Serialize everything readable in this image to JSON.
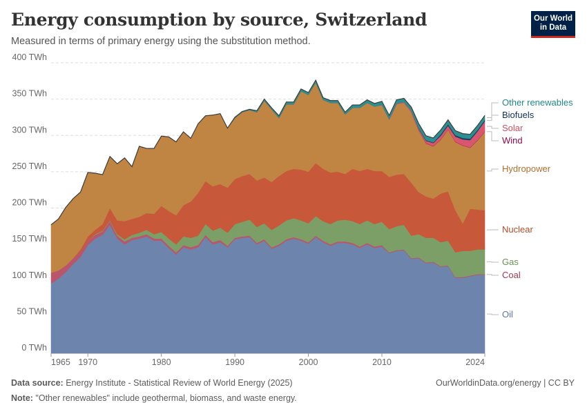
{
  "header": {
    "title": "Energy consumption by source, Switzerland",
    "subtitle": "Measured in terms of primary energy using the substitution method.",
    "logo_line1": "Our World",
    "logo_line2": "in Data"
  },
  "footer": {
    "source_label": "Data source:",
    "source_text": " Energy Institute - Statistical Review of World Energy (2025)",
    "note_label": "Note:",
    "note_text": " \"Other renewables\" include geothermal, biomass, and waste energy.",
    "credit": "OurWorldinData.org/energy | CC BY"
  },
  "colors": {
    "Oil": "#6d84ad",
    "Coal": "#b9566b",
    "Gas": "#7b9f66",
    "Nuclear": "#c8583a",
    "Hydropower": "#c08543",
    "Wind": "#a01a5a",
    "Solar": "#d8576d",
    "Biofuels": "#1f3d66",
    "Other renewables": "#2d9090"
  },
  "label_colors": {
    "Oil": "#5b75a6",
    "Coal": "#a8364e",
    "Gas": "#6a9155",
    "Nuclear": "#b84a27",
    "Hydropower": "#b06f2c",
    "Wind": "#8f0a4a",
    "Solar": "#d24e63",
    "Biofuels": "#10305a",
    "Other renewables": "#1f8888"
  },
  "chart_data": {
    "type": "area",
    "stacked": true,
    "title": "Energy consumption by source, Switzerland",
    "subtitle": "Measured in terms of primary energy using the substitution method.",
    "unit": "TWh",
    "ylim": [
      0,
      400
    ],
    "y_ticks": [
      0,
      50,
      100,
      150,
      200,
      250,
      300,
      350,
      400
    ],
    "y_tick_labels": [
      "0 TWh",
      "50 TWh",
      "100 TWh",
      "150 TWh",
      "200 TWh",
      "250 TWh",
      "300 TWh",
      "350 TWh",
      "400 TWh"
    ],
    "xlim": [
      1965,
      2024
    ],
    "x_ticks": [
      1965,
      1970,
      1980,
      1990,
      2000,
      2010,
      2024
    ],
    "grid": "horizontal-dashed",
    "legend": "right-inline",
    "x": [
      1965,
      1966,
      1967,
      1968,
      1969,
      1970,
      1971,
      1972,
      1973,
      1974,
      1975,
      1976,
      1977,
      1978,
      1979,
      1980,
      1981,
      1982,
      1983,
      1984,
      1985,
      1986,
      1987,
      1988,
      1989,
      1990,
      1991,
      1992,
      1993,
      1994,
      1995,
      1996,
      1997,
      1998,
      1999,
      2000,
      2001,
      2002,
      2003,
      2004,
      2005,
      2006,
      2007,
      2008,
      2009,
      2010,
      2011,
      2012,
      2013,
      2014,
      2015,
      2016,
      2017,
      2018,
      2019,
      2020,
      2021,
      2022,
      2023,
      2024
    ],
    "series": [
      {
        "name": "Oil",
        "values": [
          96,
          103,
          112,
          123,
          133,
          149,
          158,
          163,
          177,
          158,
          150,
          156,
          158,
          161,
          155,
          155,
          145,
          136,
          146,
          143,
          146,
          160,
          150,
          153,
          146,
          157,
          159,
          160,
          150,
          155,
          144,
          148,
          155,
          158,
          155,
          151,
          160,
          153,
          148,
          152,
          152,
          150,
          145,
          150,
          145,
          147,
          138,
          141,
          142,
          130,
          131,
          124,
          125,
          119,
          120,
          104,
          104,
          106,
          108,
          108
        ]
      },
      {
        "name": "Coal",
        "values": [
          15,
          11,
          9,
          8,
          7,
          6,
          5,
          5,
          5,
          4,
          4,
          3,
          3,
          3,
          3,
          3,
          3,
          3,
          3,
          3,
          3,
          3,
          3,
          3,
          2,
          2,
          2,
          2,
          2,
          2,
          2,
          2,
          2,
          2,
          2,
          2,
          2,
          2,
          2,
          2,
          2,
          2,
          2,
          2,
          2,
          2,
          1,
          1,
          1,
          1,
          1,
          1,
          1,
          1,
          1,
          1,
          1,
          1,
          1,
          1
        ]
      },
      {
        "name": "Gas",
        "values": [
          0,
          0,
          0,
          0,
          0,
          0,
          1,
          1,
          1,
          2,
          3,
          4,
          5,
          6,
          6,
          9,
          10,
          11,
          12,
          13,
          13,
          15,
          16,
          17,
          18,
          19,
          20,
          22,
          22,
          22,
          24,
          26,
          26,
          26,
          26,
          26,
          27,
          27,
          28,
          29,
          30,
          30,
          31,
          31,
          31,
          32,
          32,
          33,
          34,
          31,
          32,
          34,
          33,
          33,
          34,
          34,
          36,
          34,
          34,
          34
        ]
      },
      {
        "name": "Nuclear",
        "values": [
          0,
          0,
          0,
          0,
          3,
          6,
          6,
          9,
          17,
          19,
          25,
          22,
          22,
          23,
          28,
          36,
          38,
          40,
          43,
          50,
          59,
          59,
          61,
          60,
          62,
          62,
          63,
          63,
          64,
          63,
          66,
          68,
          68,
          68,
          70,
          71,
          73,
          72,
          71,
          67,
          63,
          72,
          73,
          71,
          73,
          70,
          72,
          71,
          70,
          73,
          58,
          57,
          54,
          67,
          68,
          58,
          38,
          58,
          55,
          54
        ]
      },
      {
        "name": "Hydropower",
        "values": [
          66,
          71,
          80,
          82,
          79,
          88,
          78,
          68,
          71,
          78,
          87,
          72,
          97,
          89,
          90,
          96,
          102,
          101,
          101,
          87,
          95,
          90,
          98,
          97,
          82,
          84,
          88,
          88,
          94,
          106,
          100,
          80,
          92,
          89,
          108,
          106,
          111,
          95,
          96,
          95,
          82,
          84,
          87,
          91,
          89,
          91,
          79,
          97,
          98,
          97,
          85,
          73,
          72,
          74,
          85,
          94,
          107,
          84,
          95,
          108
        ]
      },
      {
        "name": "Wind",
        "values": [
          0,
          0,
          0,
          0,
          0,
          0,
          0,
          0,
          0,
          0,
          0,
          0,
          0,
          0,
          0,
          0,
          0,
          0,
          0,
          0,
          0,
          0,
          0,
          0,
          0,
          0,
          0,
          0,
          0,
          0,
          0,
          0,
          0,
          0,
          0,
          0,
          0,
          0,
          0,
          0,
          0,
          0,
          0,
          0,
          0,
          0,
          0,
          0,
          0,
          0,
          0.5,
          0.5,
          0.5,
          0.5,
          0.5,
          0.5,
          0.5,
          0.5,
          0.5,
          0.5
        ]
      },
      {
        "name": "Solar",
        "values": [
          0,
          0,
          0,
          0,
          0,
          0,
          0,
          0,
          0,
          0,
          0,
          0,
          0,
          0,
          0,
          0,
          0,
          0,
          0,
          0,
          0,
          0,
          0,
          0,
          0,
          0,
          0,
          0,
          0,
          0,
          0,
          0,
          0,
          0,
          0,
          0,
          0,
          0,
          0,
          0,
          0,
          0,
          0,
          0,
          0,
          0,
          0.5,
          1,
          1,
          2,
          2,
          3,
          4,
          5,
          5,
          7,
          8,
          10,
          12,
          14
        ]
      },
      {
        "name": "Biofuels",
        "values": [
          0,
          0,
          0,
          0,
          0,
          0,
          0,
          0,
          0,
          0,
          0,
          0,
          0,
          0,
          0,
          0,
          0,
          0,
          0,
          0,
          0,
          0,
          0,
          0,
          0,
          0,
          0,
          0,
          0,
          0,
          0,
          0,
          0,
          0,
          0,
          0,
          0,
          0,
          0,
          0,
          0,
          0,
          0,
          0,
          0,
          0,
          0,
          0,
          0,
          0,
          1,
          1,
          1,
          2,
          2,
          2,
          2,
          2,
          2,
          2
        ]
      },
      {
        "name": "Other renewables",
        "values": [
          0,
          0,
          0,
          0,
          0,
          0,
          0,
          0,
          0,
          0,
          0,
          0,
          0,
          0,
          0,
          0,
          0,
          0,
          0,
          0,
          0,
          0,
          0,
          0,
          0,
          1,
          1,
          1,
          2,
          2,
          2,
          3,
          3,
          3,
          3,
          3,
          3,
          3,
          3,
          3,
          3,
          4,
          4,
          4,
          4,
          5,
          5,
          5,
          5,
          5,
          6,
          6,
          6,
          6,
          6,
          6,
          6,
          6,
          6,
          6
        ]
      }
    ]
  }
}
